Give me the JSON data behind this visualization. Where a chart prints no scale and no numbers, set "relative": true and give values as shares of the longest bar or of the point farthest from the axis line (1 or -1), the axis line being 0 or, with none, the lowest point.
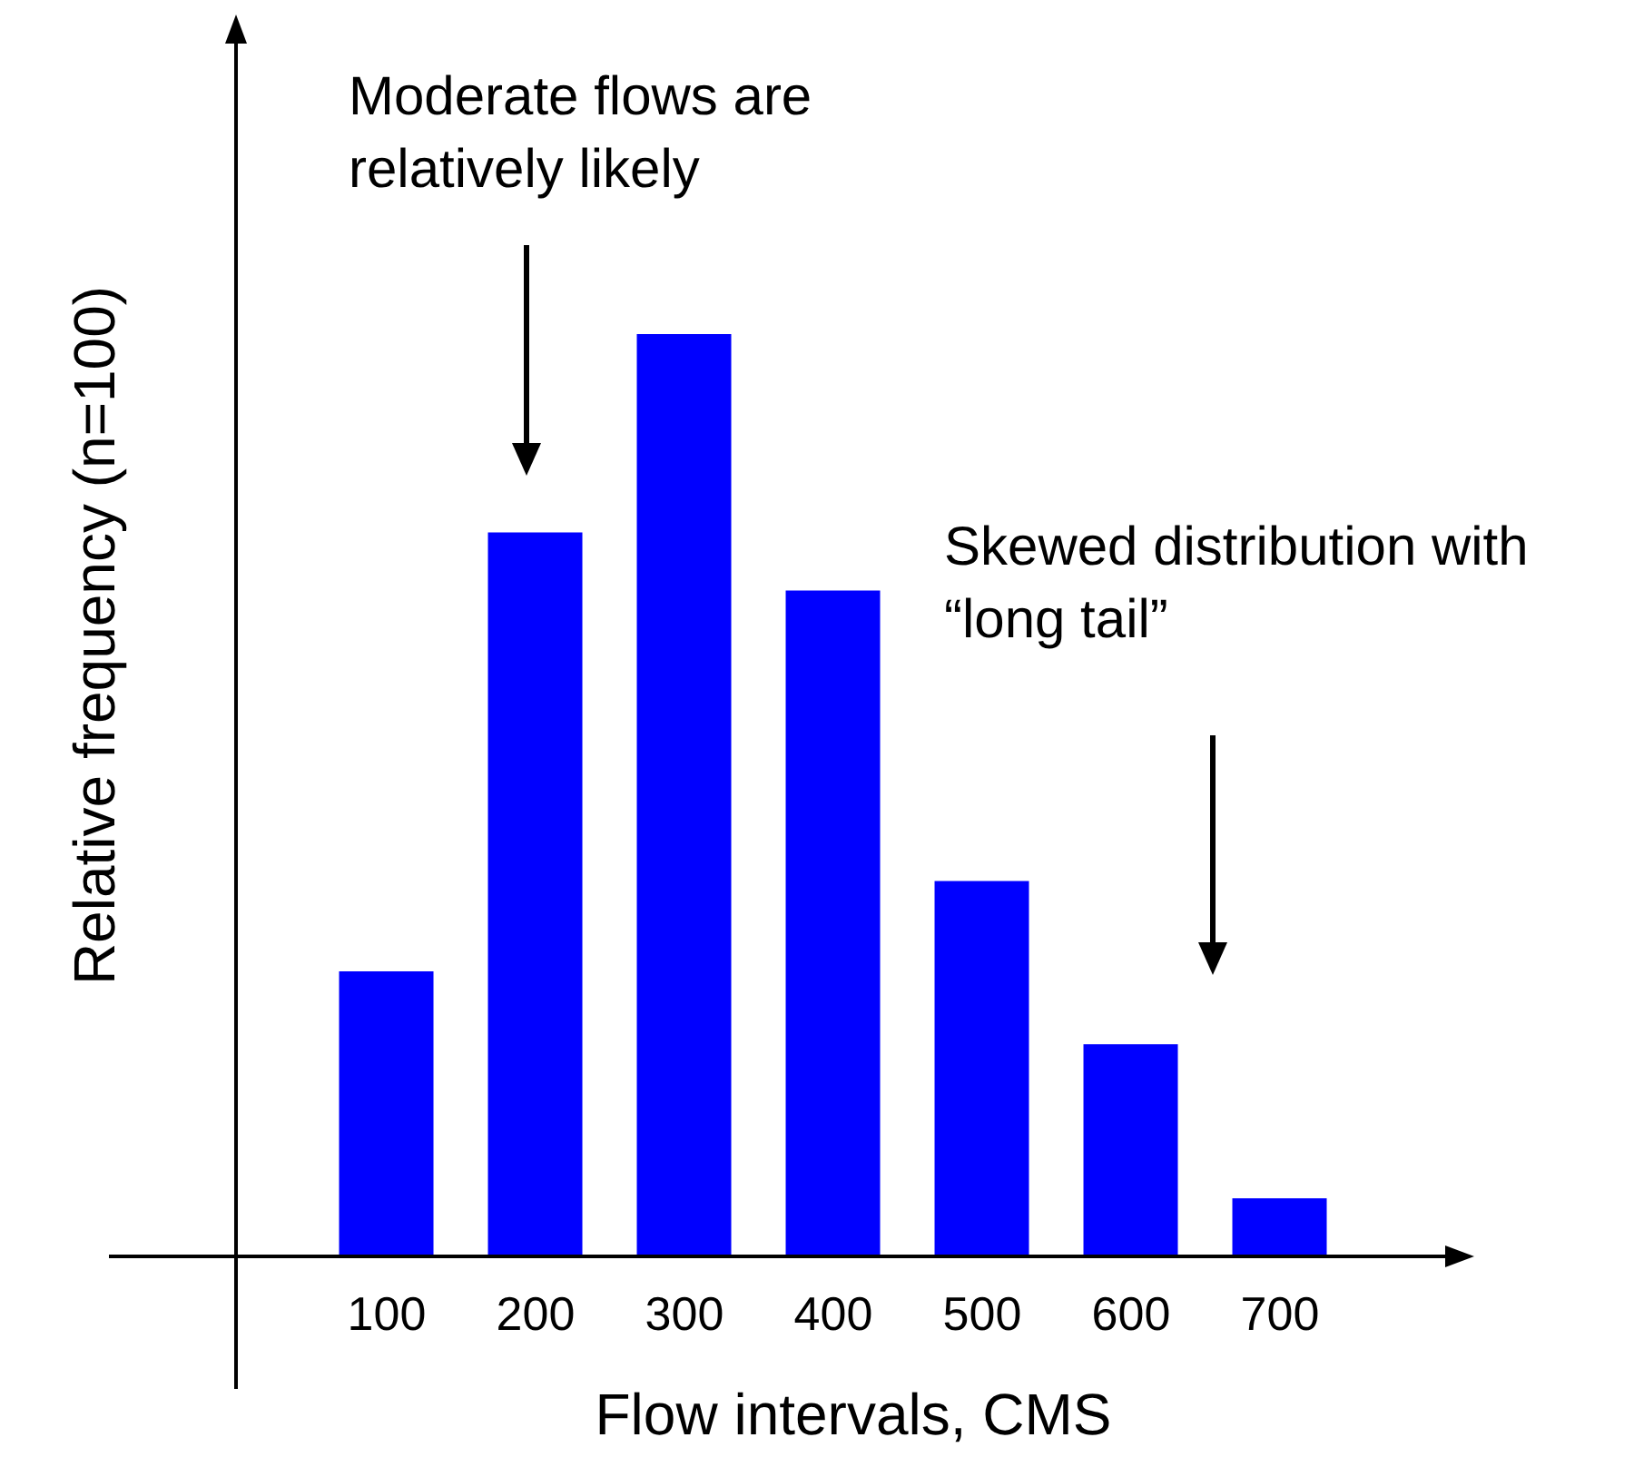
{
  "chart_data": {
    "type": "bar",
    "relative": true,
    "xlabel": "Flow intervals, CMS",
    "ylabel": "Relative frequency (n=100)",
    "categories": [
      "100",
      "200",
      "300",
      "400",
      "500",
      "600",
      "700"
    ],
    "values": [
      0.309,
      0.785,
      1,
      0.722,
      0.407,
      0.23,
      0.063
    ],
    "color": "#0000ff",
    "annotations": [
      "Moderate flows are relatively likely",
      "Skewed distribution with “long tail”"
    ]
  }
}
